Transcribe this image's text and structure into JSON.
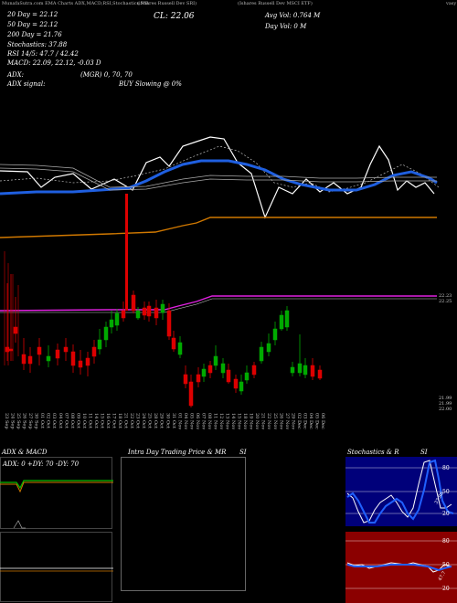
{
  "header": {
    "strip_left": "MunafaSutra.com EMA Charts ADX,MACD,RSI,Stochastics,MR",
    "strip_mid": "(iShares Russell Dev SRI)",
    "strip_right": "(Ishares Russell Dev MSCI ETF)",
    "strip_far_right": "vasy"
  },
  "info": {
    "ema20": "20 Day = 22.12",
    "ema50": "50 Day = 22.12",
    "ema200": "200 Day = 21.76",
    "stoch": "Stochastics: 37.88",
    "rsi": "RSI 14/5: 47.7 / 42.42",
    "macd": "MACD: 22.09, 22.12, -0.03 D",
    "close": "CL: 22.06",
    "avg_vol": "Avg Vol: 0.764  M",
    "day_vol": "Day Vol: 0  M",
    "adx": "ADX:",
    "adx_vals": "(MGR) 0, 70,  70",
    "adx_signal": "ADX  signal:",
    "buy_sig": "BUY Slowing @ 0%"
  },
  "price_labels": {
    "p1": "22.23",
    "p2": "22.25",
    "p3": "21.99",
    "p4": "21.99",
    "p5": "22.00"
  },
  "x_dates": [
    "23 Sep",
    "24 Sep",
    "25 Sep",
    "26 Sep",
    "27 Sep",
    "30 Sep",
    "01 Oct",
    "02 Oct",
    "03 Oct",
    "04 Oct",
    "07 Oct",
    "08 Oct",
    "09 Oct",
    "10 Oct",
    "11 Oct",
    "14 Oct",
    "15 Oct",
    "16 Oct",
    "17 Oct",
    "18 Oct",
    "21 Oct",
    "22 Oct",
    "23 Oct",
    "24 Oct",
    "25 Oct",
    "28 Oct",
    "29 Oct",
    "30 Oct",
    "31 Oct",
    "01 Nov",
    "04 Nov",
    "05 Nov",
    "06 Nov",
    "07 Nov",
    "08 Nov",
    "11 Nov",
    "12 Nov",
    "13 Nov",
    "14 Nov",
    "15 Nov",
    "18 Nov",
    "19 Nov",
    "20 Nov",
    "21 Nov",
    "22 Nov",
    "25 Nov",
    "26 Nov",
    "27 Nov",
    "29 Nov",
    "02 Dec",
    "03 Dec",
    "04 Dec",
    "05 Dec",
    "06 Dec"
  ],
  "panels": {
    "adx_title": "ADX  & MACD",
    "adx_readout": "ADX: 0  +DY: 70  -DY: 70",
    "intra_title": "Intra  Day Trading Price  & MR",
    "intra_si": "SI",
    "stoch_title": "Stochastics & R",
    "stoch_si": "SI",
    "stoch_ticks": [
      "80",
      "50",
      "20"
    ],
    "rsi_ticks": [
      "80",
      "50",
      "20"
    ],
    "stoch_val": "37.88",
    "rsi_val": "47.7"
  },
  "colors": {
    "up": "#00aa00",
    "down": "#dd0000",
    "ema_blue": "#1f5fe0",
    "ema_orange": "#d07800",
    "mr_magenta": "#e020e0",
    "red_panel": "#8b0000"
  },
  "chart_data": {
    "type": "candlestick",
    "title": "",
    "series": [
      {
        "name": "Price (relative)",
        "values": [
          0.2,
          0.22,
          0.21,
          0.23,
          0.22,
          0.24,
          0.25,
          0.3,
          0.33,
          0.35,
          0.34,
          0.36,
          0.3,
          0.32,
          0.31,
          0.42,
          0.44,
          0.4,
          0.41,
          0.43,
          0.42,
          0.4,
          0.35,
          0.36,
          0.38,
          0.34,
          0.33,
          0.3,
          0.28,
          0.32,
          0.29,
          0.31,
          0.3,
          0.33,
          0.38,
          0.45,
          0.55,
          0.6,
          0.52,
          0.48,
          0.5,
          0.44,
          0.46,
          0.45,
          0.43
        ]
      },
      {
        "name": "EMA 20 (blue)"
      },
      {
        "name": "EMA 200 (orange)"
      }
    ],
    "legend": "top-left",
    "grid": false
  }
}
